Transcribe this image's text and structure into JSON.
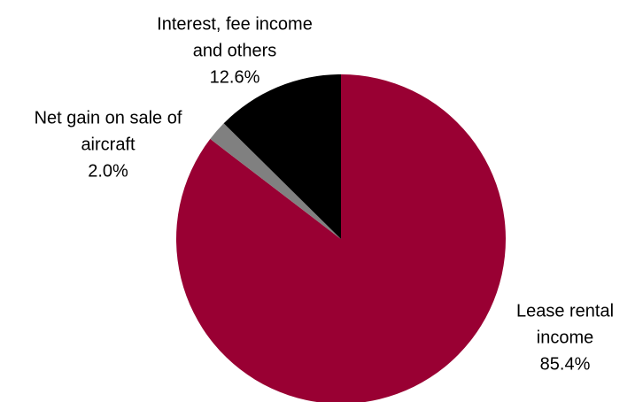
{
  "chart_data": {
    "type": "pie",
    "title": "",
    "slices": [
      {
        "label_lines": [
          "Lease rental",
          "income"
        ],
        "value": 85.4,
        "value_label": "85.4%",
        "color": "#990033"
      },
      {
        "label_lines": [
          "Net gain on sale of",
          "aircraft"
        ],
        "value": 2.0,
        "value_label": "2.0%",
        "color": "#808080"
      },
      {
        "label_lines": [
          "Interest, fee income",
          "and others"
        ],
        "value": 12.6,
        "value_label": "12.6%",
        "color": "#000000"
      }
    ],
    "start_angle": "12 o'clock",
    "direction": "clockwise",
    "legend": "none",
    "data_labels": "outside"
  }
}
